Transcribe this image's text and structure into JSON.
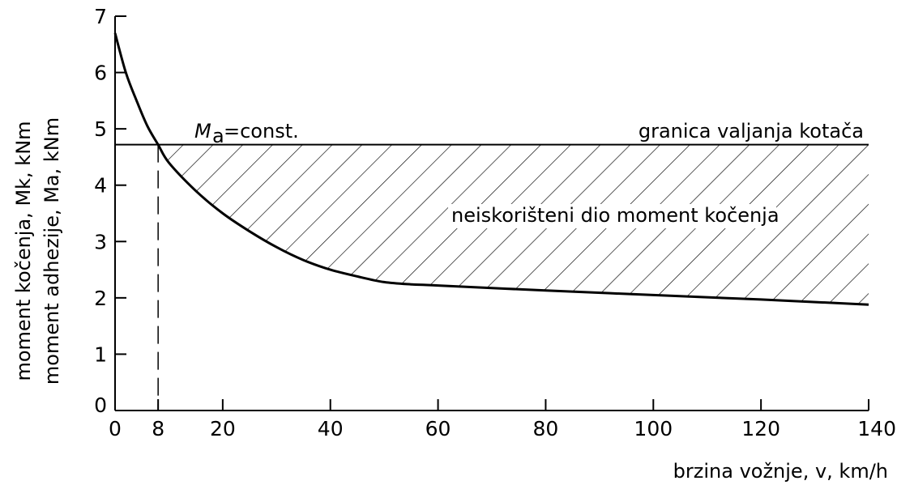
{
  "chart_data": {
    "type": "line",
    "title": "",
    "xlabel": "brzina vožnje, v, km/h",
    "ylabel": {
      "line1": "moment kočenja, Mk, kNm",
      "line2": "moment adhezije, Ma, kNm"
    },
    "xlim": [
      0,
      140
    ],
    "ylim": [
      0,
      7
    ],
    "x_ticks": [
      "0",
      "8",
      "20",
      "40",
      "60",
      "80",
      "100",
      "120",
      "140"
    ],
    "y_ticks": [
      "0",
      "1",
      "2",
      "3",
      "4",
      "5",
      "6",
      "7"
    ],
    "grid": false,
    "series": [
      {
        "name": "Mk",
        "points": [
          [
            0,
            6.7
          ],
          [
            2,
            6.0
          ],
          [
            4,
            5.5
          ],
          [
            6,
            5.05
          ],
          [
            8,
            4.72
          ],
          [
            10,
            4.4
          ],
          [
            15,
            3.9
          ],
          [
            20,
            3.5
          ],
          [
            25,
            3.18
          ],
          [
            30,
            2.9
          ],
          [
            35,
            2.67
          ],
          [
            40,
            2.5
          ],
          [
            45,
            2.38
          ],
          [
            50,
            2.28
          ],
          [
            55,
            2.24
          ],
          [
            60,
            2.22
          ],
          [
            80,
            2.13
          ],
          [
            100,
            2.05
          ],
          [
            120,
            1.97
          ],
          [
            140,
            1.88
          ]
        ]
      },
      {
        "name": "Ma",
        "points": [
          [
            0,
            4.72
          ],
          [
            140,
            4.72
          ]
        ]
      }
    ],
    "reference_line": {
      "x": 8,
      "style": "dashed"
    },
    "hatched_region": "between Ma and Mk, x ≥ 8",
    "annotations": {
      "ma_label": "=const.",
      "ma_symbol": "M",
      "ma_subscript": "a",
      "limit_label": "granica valjanja kotača",
      "region_label": "neiskorišteni dio moment kočenja"
    }
  }
}
